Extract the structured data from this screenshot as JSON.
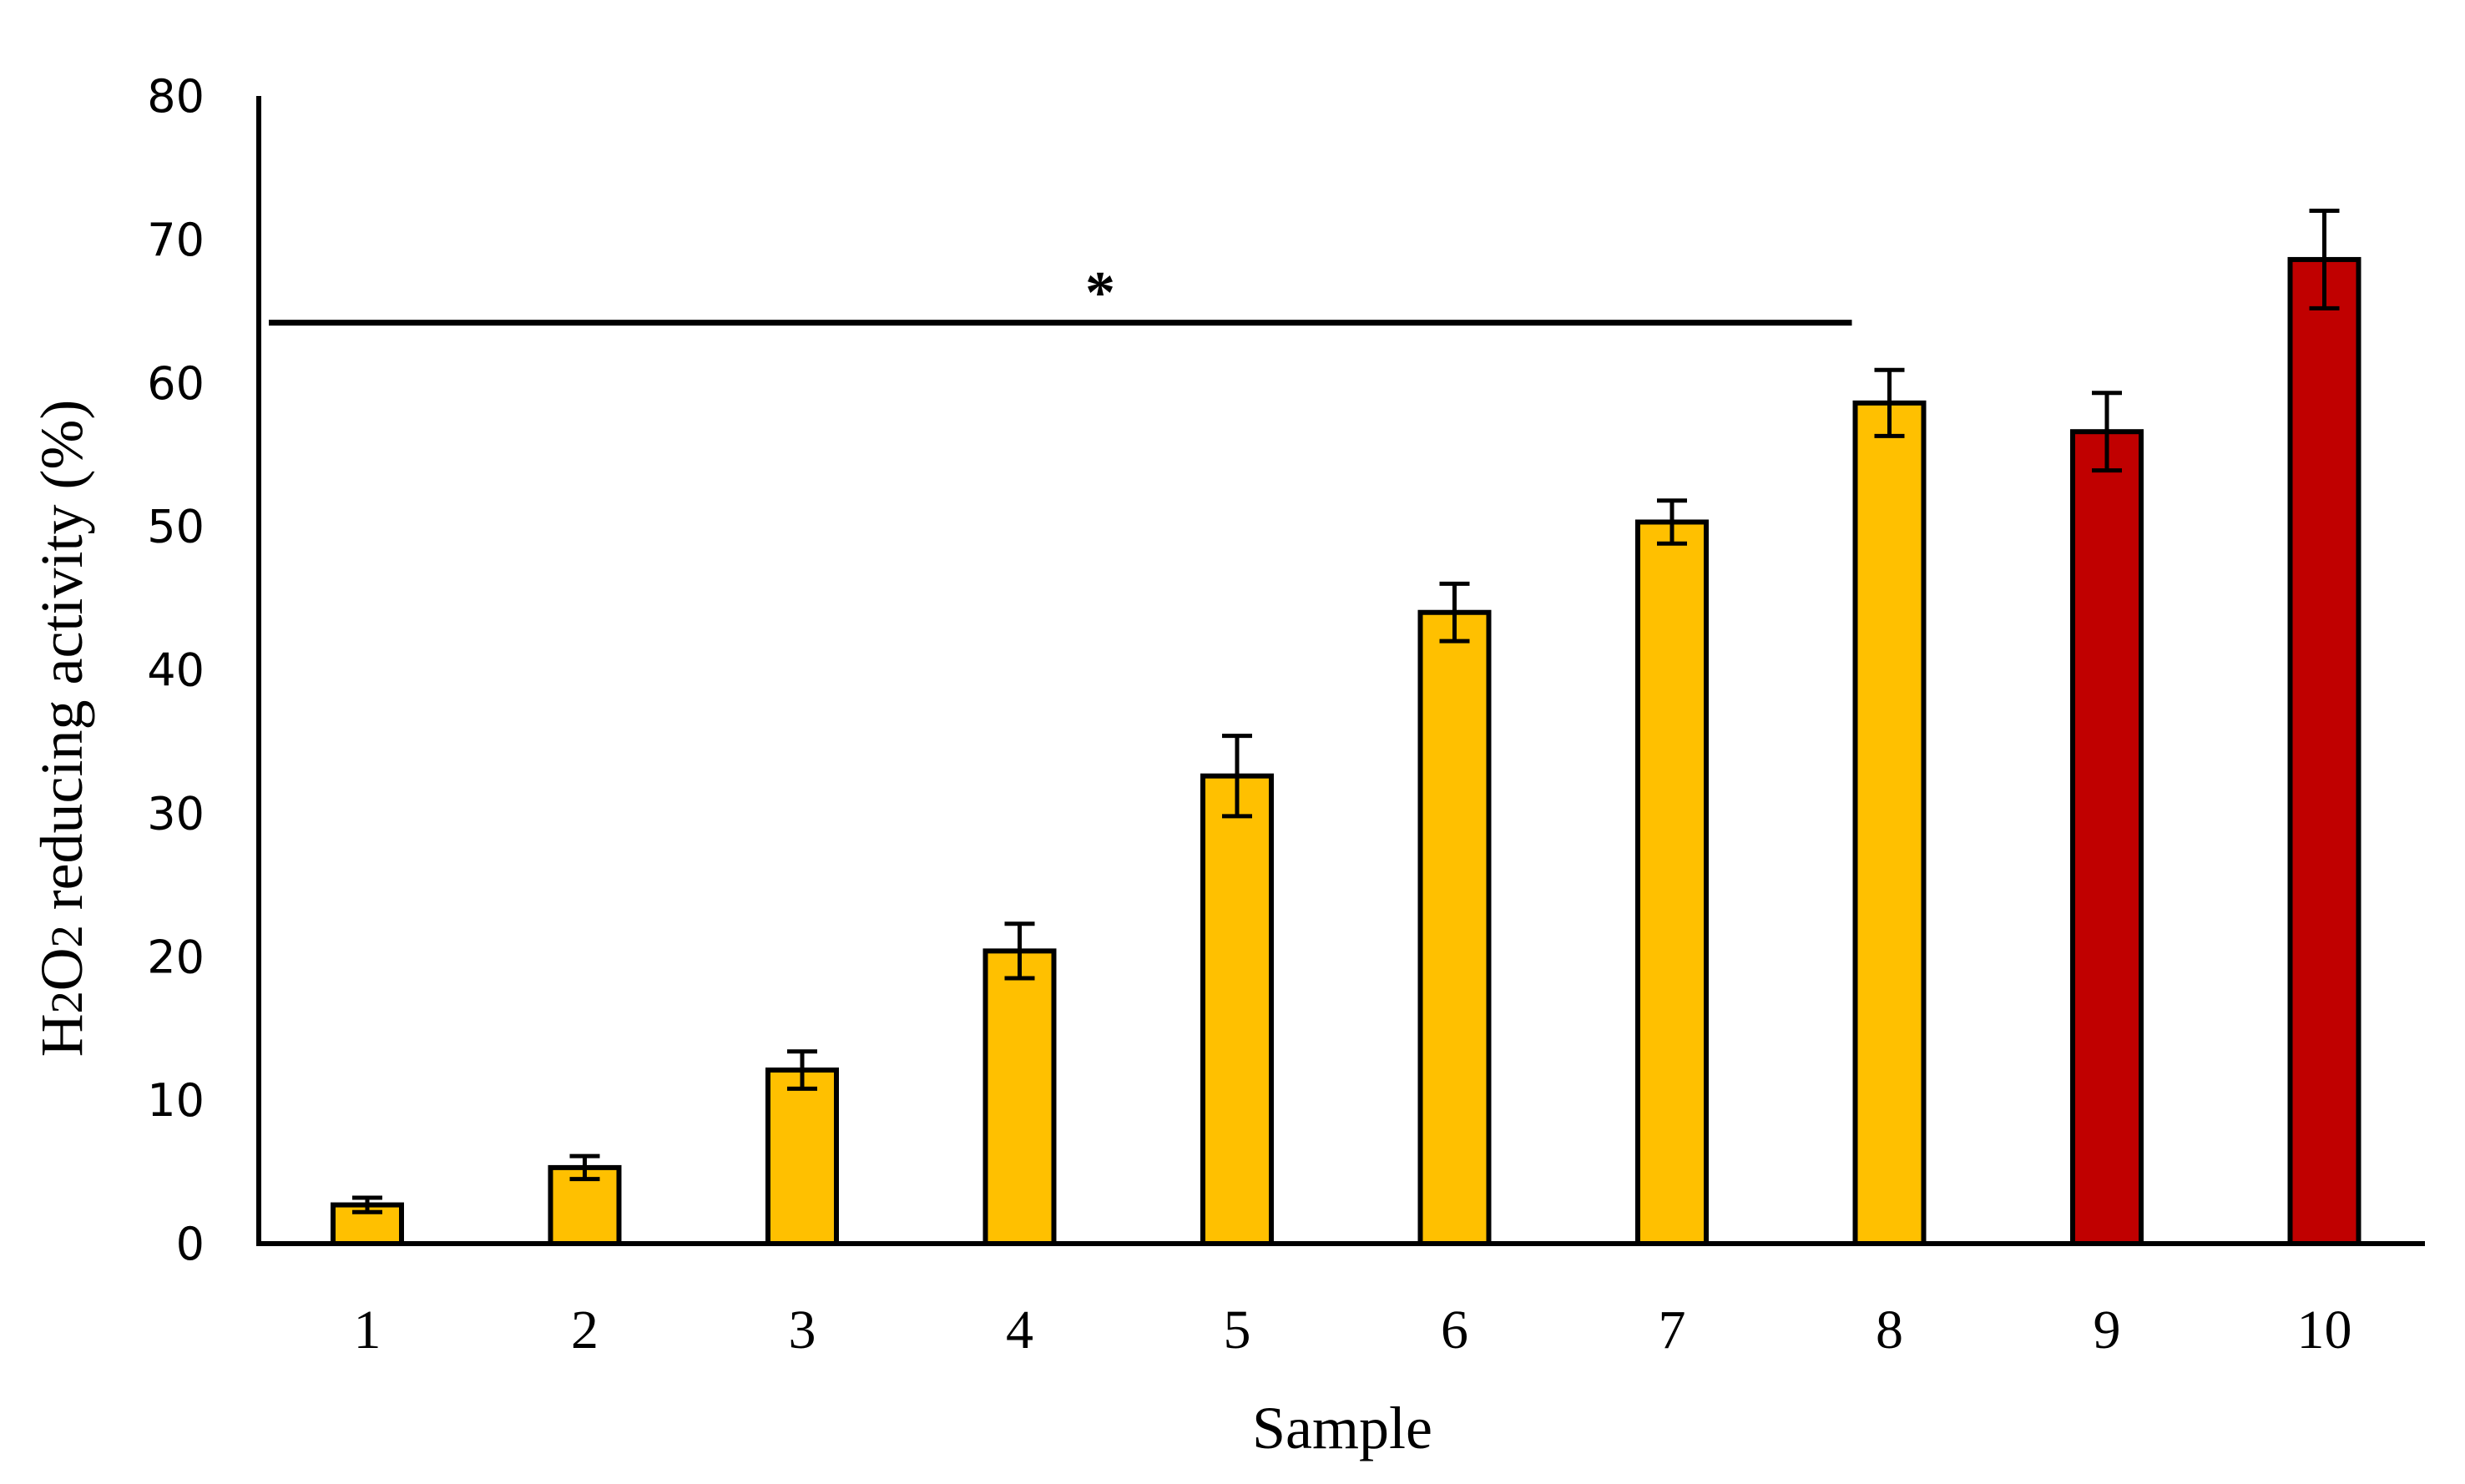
{
  "chart_data": {
    "type": "bar",
    "title": "",
    "xlabel": "Sample",
    "ylabel": "H2O2 reducing activity (%)",
    "ylim": [
      0,
      80
    ],
    "yticks": [
      "0",
      "10",
      "20",
      "30",
      "40",
      "50",
      "60",
      "70",
      "80"
    ],
    "categories": [
      "1",
      "2",
      "3",
      "4",
      "5",
      "6",
      "7",
      "8",
      "9",
      "10"
    ],
    "values": [
      2.7,
      5.3,
      12.1,
      20.4,
      32.6,
      44.0,
      50.3,
      58.6,
      56.6,
      68.6
    ],
    "errors": [
      0.5,
      0.8,
      1.3,
      1.9,
      2.8,
      2.0,
      1.5,
      2.3,
      2.7,
      3.4
    ],
    "colors": [
      "#FFC000",
      "#FFC000",
      "#FFC000",
      "#FFC000",
      "#FFC000",
      "#FFC000",
      "#FFC000",
      "#FFC000",
      "#C00000",
      "#C00000"
    ],
    "grid": false,
    "annotation": {
      "text": "*",
      "spans_categories": [
        "1",
        "8"
      ],
      "level": 64.2
    }
  }
}
